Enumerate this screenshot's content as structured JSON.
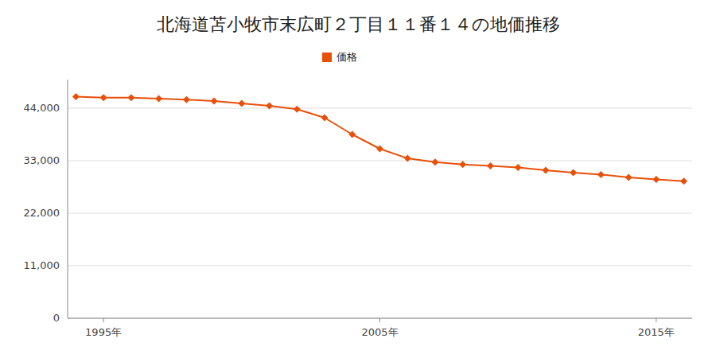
{
  "chart_data": {
    "type": "line",
    "title": "北海道苫小牧市末広町２丁目１１番１４の地価推移",
    "x": [
      1994,
      1995,
      1996,
      1997,
      1998,
      1999,
      2000,
      2001,
      2002,
      2003,
      2004,
      2005,
      2006,
      2007,
      2008,
      2009,
      2010,
      2011,
      2012,
      2013,
      2014,
      2015,
      2016
    ],
    "series": [
      {
        "name": "価格",
        "color": "#e8500a",
        "marker": "diamond",
        "values": [
          46400,
          46200,
          46200,
          46000,
          45800,
          45500,
          45000,
          44500,
          43800,
          42000,
          38500,
          35500,
          33500,
          32700,
          32200,
          31900,
          31600,
          31000,
          30500,
          30100,
          29500,
          29100,
          28700
        ]
      }
    ],
    "xlim": [
      1993.7,
      2016.3
    ],
    "xticks": [
      {
        "value": 1995,
        "label": "1995年"
      },
      {
        "value": 2005,
        "label": "2005年"
      },
      {
        "value": 2015,
        "label": "2015年"
      }
    ],
    "ylim": [
      0,
      50000
    ],
    "yticks": [
      0,
      {
        "value": 11000,
        "label": "11,000"
      },
      {
        "value": 22000,
        "label": "22,000"
      },
      {
        "value": 33000,
        "label": "33,000"
      },
      {
        "value": 44000,
        "label": "44,000"
      }
    ],
    "grid": true,
    "legend": "top"
  }
}
